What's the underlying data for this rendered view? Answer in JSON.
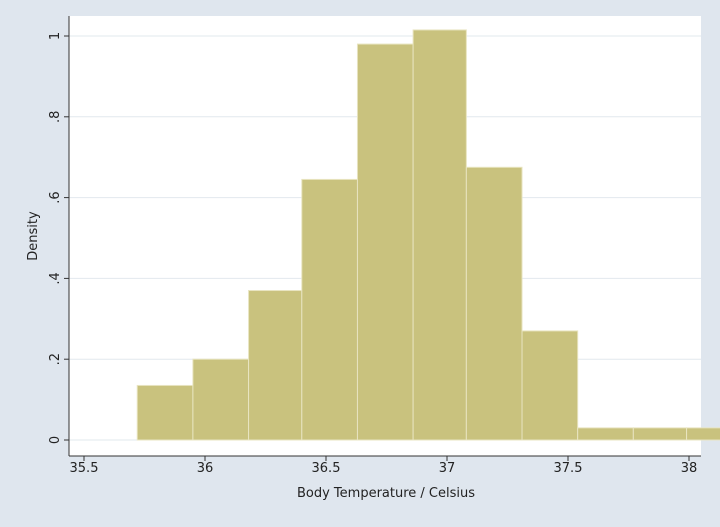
{
  "chart_data": {
    "type": "bar",
    "subtype": "histogram",
    "title": "",
    "xlabel": "Body Temperature / Celsius",
    "ylabel": "Density",
    "xlim": [
      35.5,
      38.22
    ],
    "ylim": [
      0,
      1.08
    ],
    "x_ticks": [
      35.5,
      36,
      36.5,
      37,
      37.5,
      38
    ],
    "x_tick_labels": [
      "35.5",
      "36",
      "36.5",
      "37",
      "37.5",
      "38"
    ],
    "y_ticks": [
      0,
      0.2,
      0.4,
      0.6,
      0.8,
      1
    ],
    "y_tick_labels": [
      "0",
      ".2",
      ".4",
      ".6",
      ".8",
      "1"
    ],
    "grid": true,
    "legend": "none",
    "bins": [
      {
        "start": 35.72,
        "end": 35.95,
        "density": 0.135
      },
      {
        "start": 35.95,
        "end": 36.18,
        "density": 0.2
      },
      {
        "start": 36.18,
        "end": 36.4,
        "density": 0.37
      },
      {
        "start": 36.4,
        "end": 36.63,
        "density": 0.645
      },
      {
        "start": 36.63,
        "end": 36.86,
        "density": 0.98
      },
      {
        "start": 36.86,
        "end": 37.08,
        "density": 1.015
      },
      {
        "start": 37.08,
        "end": 37.31,
        "density": 0.675
      },
      {
        "start": 37.31,
        "end": 37.54,
        "density": 0.27
      },
      {
        "start": 37.54,
        "end": 37.77,
        "density": 0.03
      },
      {
        "start": 37.77,
        "end": 37.99,
        "density": 0.03
      },
      {
        "start": 37.99,
        "end": 38.22,
        "density": 0.03
      }
    ],
    "colors": {
      "bar_fill": "#c9c27e",
      "bar_stroke": "#e8e4c0",
      "plot_bg": "#ffffff",
      "outer_bg": "#dfe6ee",
      "grid": "#e2e8ee",
      "axis": "#333333"
    }
  }
}
